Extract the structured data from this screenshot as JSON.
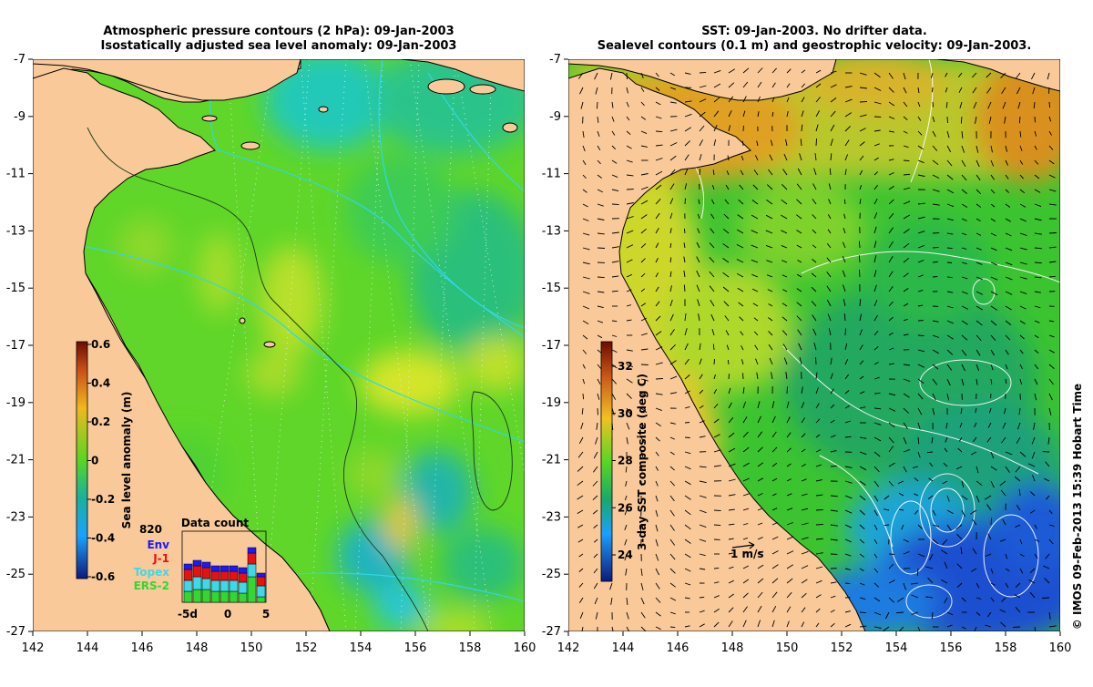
{
  "left_panel": {
    "title_line1": "Atmospheric pressure contours (2 hPa): 09-Jan-2003",
    "title_line2": "Isostatically adjusted sea level anomaly: 09-Jan-2003",
    "colorbar": {
      "label": "Sea level anomaly (m)",
      "ticks": [
        "0.6",
        "0.4",
        "0.2",
        "0",
        "-0.2",
        "-0.4",
        "-0.6"
      ]
    },
    "data_count": {
      "title": "Data count",
      "max_label": "820",
      "x_ticks": [
        "-5d",
        "0",
        "5"
      ],
      "satellites": [
        {
          "name": "Env",
          "color": "#1a1aff"
        },
        {
          "name": "J-1",
          "color": "#e81010"
        },
        {
          "name": "Topex",
          "color": "#3dd9e8"
        },
        {
          "name": "ERS-2",
          "color": "#33d633"
        }
      ]
    }
  },
  "right_panel": {
    "title_line1": "SST: 09-Jan-2003. No drifter data.",
    "title_line2": "Sealevel contours (0.1 m) and geostrophic velocity: 09-Jan-2003.",
    "colorbar": {
      "label": "3-day SST composite (deg C)",
      "ticks": [
        "32",
        "30",
        "28",
        "26",
        "24"
      ]
    },
    "velocity_scale_label": "1 m/s"
  },
  "axes": {
    "x_ticks": [
      "142",
      "144",
      "146",
      "148",
      "150",
      "152",
      "154",
      "156",
      "158",
      "160"
    ],
    "y_ticks": [
      "-7",
      "-9",
      "-11",
      "-13",
      "-15",
      "-17",
      "-19",
      "-21",
      "-23",
      "-25",
      "-27"
    ]
  },
  "credit": "© IMOS 09-Feb-2013 15:39 Hobart Time",
  "colors": {
    "land": "#f9c99a",
    "sla_base": "#5fd629",
    "sst_warm": "#d9a21c",
    "sst_cool": "#1f9e3a",
    "sst_cold": "#1f4fd0"
  }
}
